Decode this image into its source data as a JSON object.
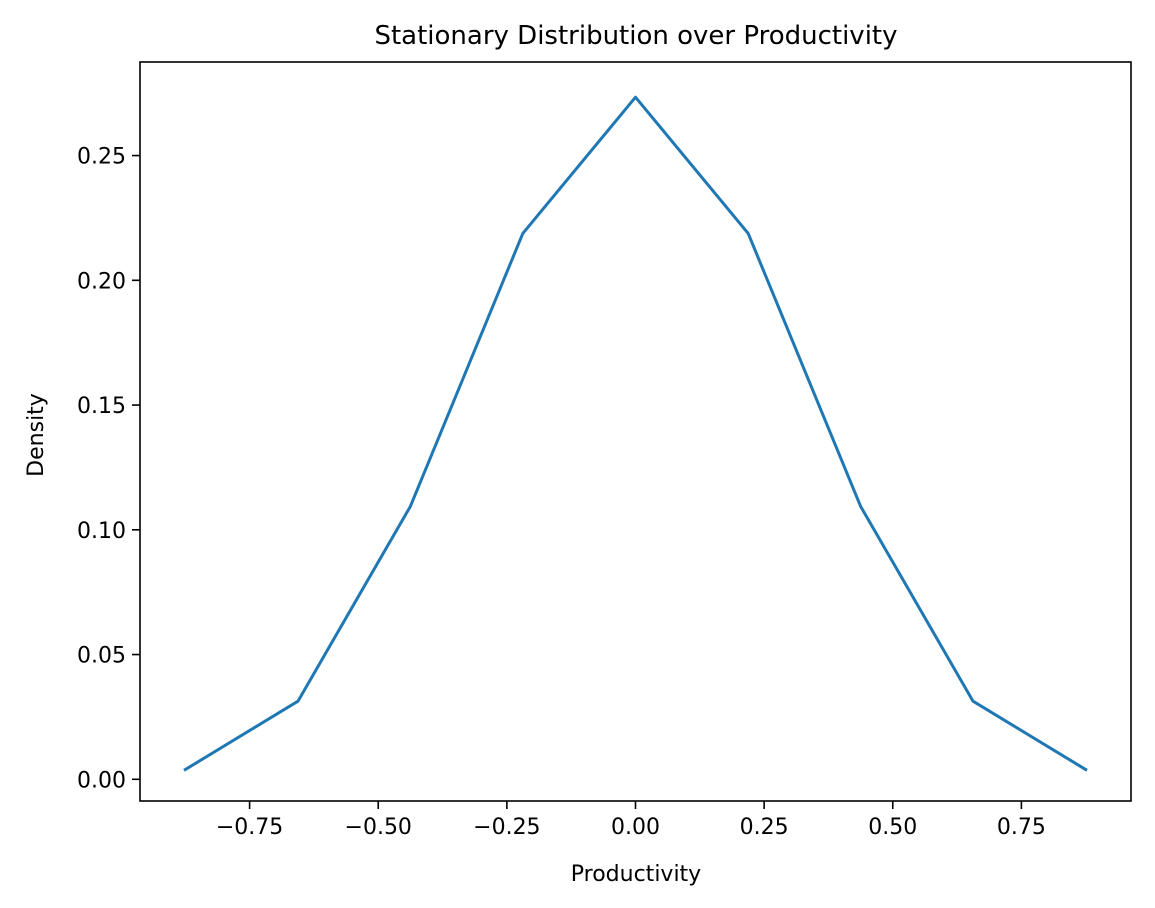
{
  "chart_data": {
    "type": "line",
    "title": "Stationary Distribution over Productivity",
    "xlabel": "Productivity",
    "ylabel": "Density",
    "xlim": [
      -0.963,
      0.963
    ],
    "ylim": [
      -0.0087,
      0.2875
    ],
    "xticks": [
      -0.75,
      -0.5,
      -0.25,
      0.0,
      0.25,
      0.5,
      0.75
    ],
    "xtick_labels": [
      "−0.75",
      "−0.50",
      "−0.25",
      "0.00",
      "0.25",
      "0.50",
      "0.75"
    ],
    "yticks": [
      0.0,
      0.05,
      0.1,
      0.15,
      0.2,
      0.25
    ],
    "ytick_labels": [
      "0.00",
      "0.05",
      "0.10",
      "0.15",
      "0.20",
      "0.25"
    ],
    "grid": false,
    "series": [
      {
        "color": "#1f77b4",
        "x": [
          -0.875,
          -0.656,
          -0.4375,
          -0.219,
          0.0,
          0.219,
          0.4375,
          0.656,
          0.875
        ],
        "y": [
          0.0039,
          0.0313,
          0.1094,
          0.2188,
          0.2734,
          0.2188,
          0.1094,
          0.0313,
          0.0039
        ]
      }
    ]
  }
}
